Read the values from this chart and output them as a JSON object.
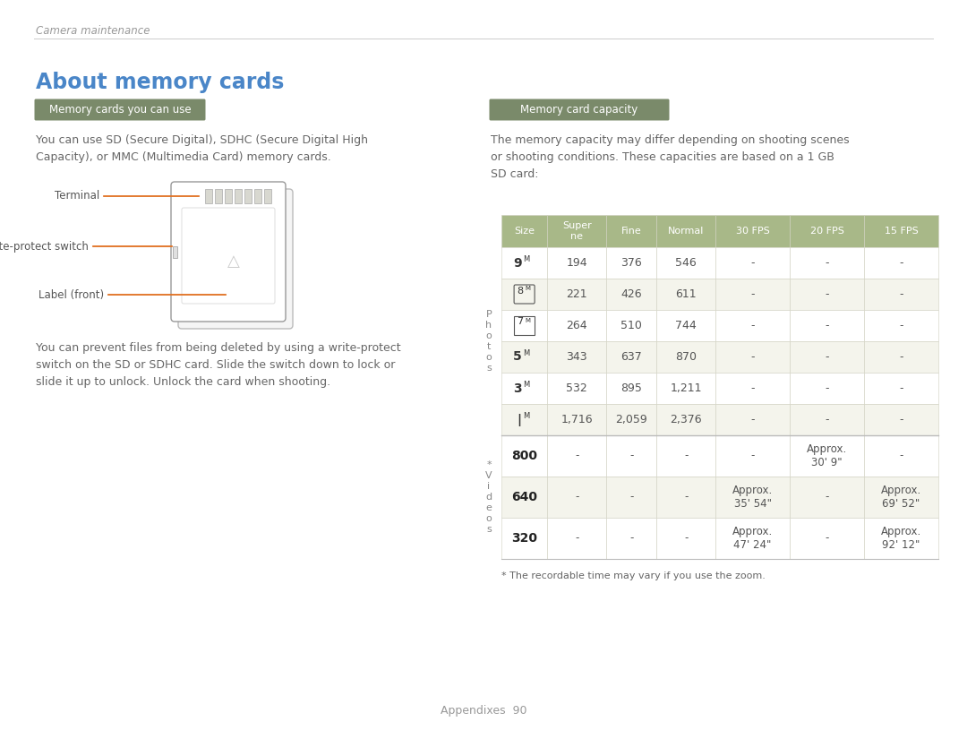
{
  "page_bg": "#ffffff",
  "header_text": "Camera maintenance",
  "header_line_color": "#cccccc",
  "title_text": "About memory cards",
  "title_color": "#4a86c8",
  "section1_badge_text": "Memory cards you can use",
  "section1_badge_bg": "#7a8a6a",
  "section1_badge_text_color": "#ffffff",
  "section1_body": "You can use SD (Secure Digital), SDHC (Secure Digital High\nCapacity), or MMC (Multimedia Card) memory cards.",
  "section1_body_color": "#666666",
  "diagram_label_terminal": "Terminal",
  "diagram_label_write": "Write-protect switch",
  "diagram_label_label": "Label (front)",
  "diagram_label_color": "#555555",
  "diagram_arrow_color": "#e07020",
  "section2_body": "You can prevent files from being deleted by using a write-protect\nswitch on the SD or SDHC card. Slide the switch down to lock or\nslide it up to unlock. Unlock the card when shooting.",
  "section2_body_color": "#666666",
  "section2_badge_text": "Memory card capacity",
  "section2_badge_bg": "#7a8a6a",
  "section2_badge_text_color": "#ffffff",
  "capacity_intro": "The memory capacity may differ depending on shooting scenes\nor shooting conditions. These capacities are based on a 1 GB\nSD card:",
  "capacity_intro_color": "#666666",
  "table_header_bg": "#a8b888",
  "table_header_text_color": "#ffffff",
  "table_alt_row_bg": "#f4f4ec",
  "table_row_bg": "#ffffff",
  "table_border_color": "#d0d0c0",
  "table_headers": [
    "Size",
    "Super\nne",
    "Fine",
    "Normal",
    "30 FPS",
    "20 FPS",
    "15 FPS"
  ],
  "photo_size_labels": [
    "9M",
    "8M",
    "7M",
    "5M",
    "3M",
    "1M"
  ],
  "photo_size_bold": [
    true,
    false,
    false,
    true,
    true,
    true
  ],
  "photo_size_special": [
    false,
    true,
    true,
    false,
    false,
    false
  ],
  "photo_row_data": [
    [
      "194",
      "376",
      "546",
      "-",
      "-",
      "-"
    ],
    [
      "221",
      "426",
      "611",
      "-",
      "-",
      "-"
    ],
    [
      "264",
      "510",
      "744",
      "-",
      "-",
      "-"
    ],
    [
      "343",
      "637",
      "870",
      "-",
      "-",
      "-"
    ],
    [
      "532",
      "895",
      "1,211",
      "-",
      "-",
      "-"
    ],
    [
      "1,716",
      "2,059",
      "2,376",
      "-",
      "-",
      "-"
    ]
  ],
  "video_size_labels": [
    "800",
    "640",
    "320"
  ],
  "video_row_data": [
    [
      "-",
      "-",
      "-",
      "-",
      "Approx.\n30' 9\"",
      "-"
    ],
    [
      "-",
      "-",
      "-",
      "Approx.\n35' 54\"",
      "-",
      "Approx.\n69' 52\""
    ],
    [
      "-",
      "-",
      "-",
      "Approx.\n47' 24\"",
      "-",
      "Approx.\n92' 12\""
    ]
  ],
  "footnote": "* The recordable time may vary if you use the zoom.",
  "footnote_color": "#666666",
  "footer_text": "Appendixes  90",
  "footer_color": "#999999"
}
